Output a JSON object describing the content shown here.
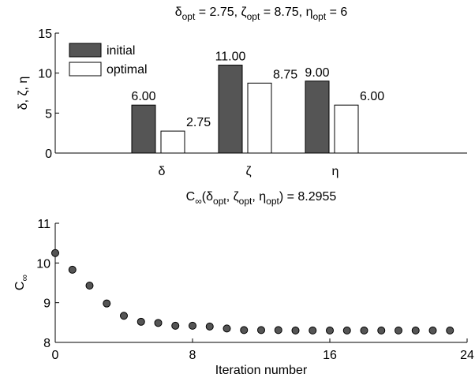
{
  "colors": {
    "initial": "#555555",
    "optimal": "#ffffff",
    "marker": "#555555",
    "axis": "#000000"
  },
  "chart_data": [
    {
      "type": "bar",
      "title": {
        "parts": [
          {
            "t": "δ"
          },
          {
            "t": "opt",
            "sub": true
          },
          {
            "t": " = 2.75, ζ"
          },
          {
            "t": "opt",
            "sub": true
          },
          {
            "t": " = 8.75, η"
          },
          {
            "t": "opt",
            "sub": true
          },
          {
            "t": " = 6"
          }
        ]
      },
      "ylabel": "δ, ζ, η",
      "categories": [
        "δ",
        "ζ",
        "η"
      ],
      "ylim": [
        0,
        15
      ],
      "yticks": [
        "0",
        "5",
        "10",
        "15"
      ],
      "legend": {
        "position": "top-left",
        "entries": [
          "initial",
          "optimal"
        ]
      },
      "series": [
        {
          "name": "initial",
          "values": [
            6,
            11,
            9
          ],
          "labels": [
            "6.00",
            "11.00",
            "9.00"
          ]
        },
        {
          "name": "optimal",
          "values": [
            2.75,
            8.75,
            6
          ],
          "labels": [
            "2.75",
            "8.75",
            "6.00"
          ]
        }
      ]
    },
    {
      "type": "scatter",
      "title": {
        "parts": [
          {
            "t": "C"
          },
          {
            "t": "∞",
            "sub": true
          },
          {
            "t": "(δ"
          },
          {
            "t": "opt",
            "sub": true
          },
          {
            "t": ", ζ"
          },
          {
            "t": "opt",
            "sub": true
          },
          {
            "t": ", η"
          },
          {
            "t": "opt",
            "sub": true
          },
          {
            "t": ") = 8.2955"
          }
        ]
      },
      "xlabel": "Iteration number",
      "ylabel": {
        "parts": [
          {
            "t": "C"
          },
          {
            "t": "∞",
            "sub": true
          }
        ]
      },
      "xlim": [
        0,
        24
      ],
      "ylim": [
        8,
        11
      ],
      "xticks": [
        "0",
        "8",
        "16",
        "24"
      ],
      "yticks": [
        "8",
        "9",
        "10",
        "11"
      ],
      "x": [
        0,
        1,
        2,
        3,
        4,
        5,
        6,
        7,
        8,
        9,
        10,
        11,
        12,
        13,
        14,
        15,
        16,
        17,
        18,
        19,
        20,
        21,
        22,
        23
      ],
      "y": [
        10.25,
        9.83,
        9.43,
        8.98,
        8.67,
        8.52,
        8.49,
        8.42,
        8.42,
        8.4,
        8.35,
        8.31,
        8.31,
        8.31,
        8.3,
        8.3,
        8.3,
        8.3,
        8.3,
        8.3,
        8.3,
        8.3,
        8.3,
        8.3
      ]
    }
  ]
}
